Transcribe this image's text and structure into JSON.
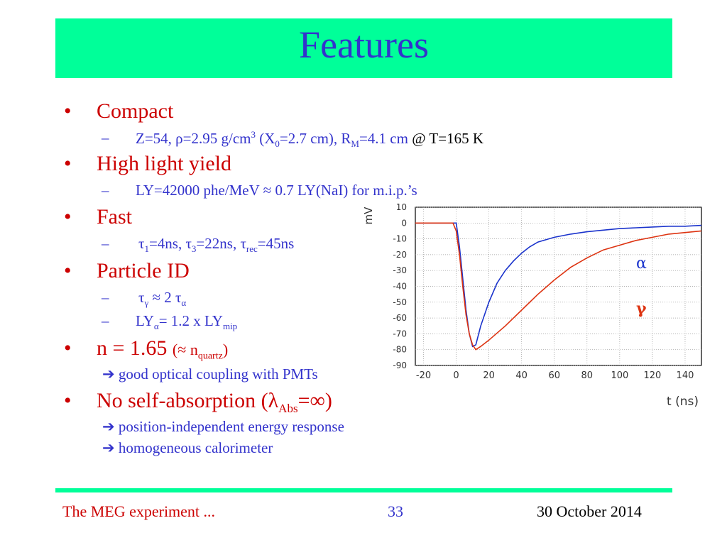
{
  "title": "Features",
  "bullets": [
    {
      "text": "Compact"
    },
    {
      "text": "High light yield"
    },
    {
      "text": "Fast"
    },
    {
      "text": "Particle ID"
    },
    {
      "main": "n = 1.65",
      "approx": "(≈ n",
      "sub": "quartz",
      "close": ")"
    },
    {
      "main": "No self-absorption  (λ",
      "sub": "Abs",
      "close": "=∞)"
    }
  ],
  "sub_compact": {
    "a": "Z=54,  ρ=2.95 g/cm",
    "sup": "3",
    "b": " (X",
    "sub0": "0",
    "c": "=2.7 cm), R",
    "subM": "M",
    "d": "=4.1 cm ",
    "temp": "@ T=165 K"
  },
  "sub_ly": "LY=42000 phe/MeV ≈ 0.7 LY(NaI) for m.i.p.’s",
  "sub_fast": {
    "t1": "τ",
    "s1": "1",
    "a": "=4ns, τ",
    "s3": "3",
    "b": "=22ns, τ",
    "srec": "rec",
    "c": "=45ns"
  },
  "sub_pid1": {
    "a": "τ",
    "sg": "γ",
    "b": " ≈ 2 τ",
    "sa": "α"
  },
  "sub_pid2": {
    "a": "LY",
    "sa": "α",
    "b": "= 1.2  x  LY",
    "smip": "mip"
  },
  "arrows": [
    "good optical coupling with PMTs",
    "position-independent  energy response",
    "homogeneous calorimeter"
  ],
  "arrow_glyph": "➔",
  "dash": "–",
  "dot": "•",
  "footer": {
    "left": "The MEG experiment ...",
    "page": "33",
    "date": "30 October 2014"
  },
  "colors": {
    "accent_bar": "#00ff99",
    "title": "#3333cc",
    "bullet": "#cc0000",
    "sub": "#3333cc",
    "alpha_trace": "#1a33cc",
    "gamma_trace": "#dd3311"
  },
  "chart_data": {
    "type": "line",
    "ylabel": "mV",
    "xlabel": "t (ns)",
    "xlim": [
      -25,
      150
    ],
    "ylim": [
      -90,
      10
    ],
    "xticks": [
      -20,
      0,
      20,
      40,
      60,
      80,
      100,
      120,
      140
    ],
    "yticks": [
      10,
      0,
      -10,
      -20,
      -30,
      -40,
      -50,
      -60,
      -70,
      -80,
      -90
    ],
    "grid": true,
    "series": [
      {
        "name": "α",
        "color": "#1a33cc",
        "x": [
          -25,
          0,
          2,
          4,
          6,
          8,
          10,
          12,
          15,
          20,
          25,
          30,
          35,
          40,
          45,
          50,
          60,
          70,
          80,
          90,
          100,
          110,
          120,
          130,
          140,
          150
        ],
        "y": [
          0,
          0,
          -15,
          -35,
          -55,
          -70,
          -78,
          -77,
          -65,
          -50,
          -38,
          -30,
          -24,
          -19,
          -15,
          -12,
          -9,
          -7,
          -5.5,
          -4.5,
          -3.5,
          -3,
          -2.5,
          -2,
          -2,
          -1.5
        ]
      },
      {
        "name": "γ",
        "color": "#dd3311",
        "x": [
          -25,
          -2,
          0,
          2,
          4,
          6,
          8,
          10,
          12,
          15,
          20,
          30,
          40,
          50,
          60,
          70,
          80,
          90,
          100,
          110,
          120,
          130,
          140,
          150
        ],
        "y": [
          0,
          0,
          -5,
          -20,
          -40,
          -58,
          -70,
          -77,
          -80,
          -78,
          -74,
          -65,
          -55,
          -45,
          -36,
          -28,
          -22,
          -17,
          -14,
          -11,
          -9,
          -7,
          -6,
          -5
        ]
      }
    ]
  }
}
